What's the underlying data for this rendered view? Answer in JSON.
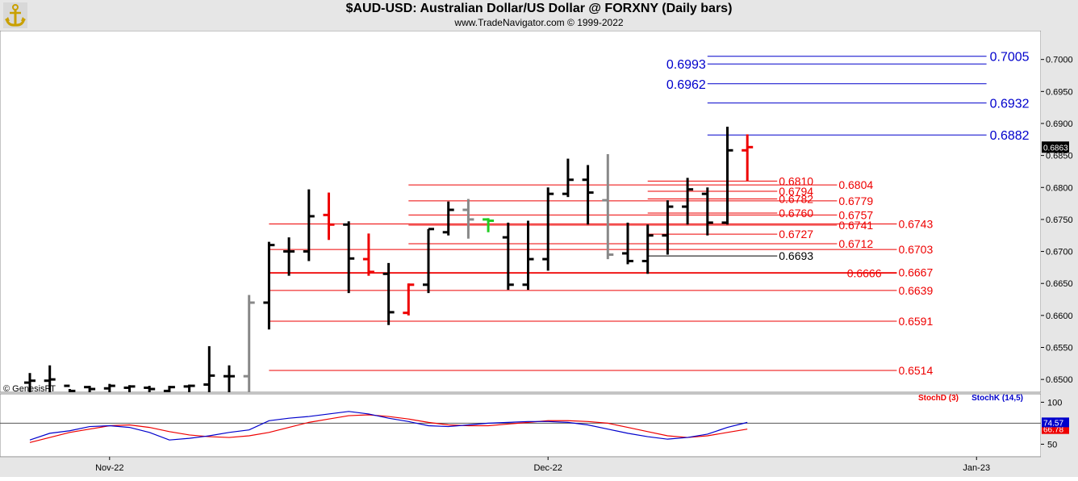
{
  "header": {
    "title": "$AUD-USD:  Australian Dollar/US Dollar @ FORXNY  (Daily bars)",
    "subtitle": "www.TradeNavigator.com © 1999-2022"
  },
  "copyright": "© GenesisFT",
  "colors": {
    "blue": "#0000cc",
    "red": "#e00000",
    "up": "#000000",
    "down": "#ee0000",
    "gray": "#888888",
    "green": "#22cc22"
  },
  "chart_data": [
    {
      "type": "ohlc",
      "ylim": [
        0.648,
        0.7045
      ],
      "yticks": [
        0.65,
        0.655,
        0.66,
        0.665,
        0.67,
        0.675,
        0.68,
        0.685,
        0.69,
        0.695,
        0.7
      ],
      "ytick_labels": [
        "0.6500",
        "0.6550",
        "0.6600",
        "0.6650",
        "0.6700",
        "0.6750",
        "0.6800",
        "0.6850",
        "0.6900",
        "0.6950",
        "0.7000"
      ],
      "last_price_label": "0.6863",
      "xtick_labels": [
        {
          "label": "Nov-22",
          "bar": 4
        },
        {
          "label": "Dec-22",
          "bar": 26
        },
        {
          "label": "Jan-23",
          "bar": 47.5
        }
      ],
      "bars": [
        {
          "o": 0.6495,
          "h": 0.651,
          "l": 0.648,
          "c": 0.6498,
          "col": "black"
        },
        {
          "o": 0.6498,
          "h": 0.6522,
          "l": 0.648,
          "c": 0.65,
          "col": "black"
        },
        {
          "o": 0.649,
          "h": 0.6485,
          "l": 0.648,
          "c": 0.6482,
          "col": "black"
        },
        {
          "o": 0.6488,
          "h": 0.649,
          "l": 0.648,
          "c": 0.6485,
          "col": "black"
        },
        {
          "o": 0.6486,
          "h": 0.6493,
          "l": 0.648,
          "c": 0.649,
          "col": "black"
        },
        {
          "o": 0.6487,
          "h": 0.6491,
          "l": 0.648,
          "c": 0.6489,
          "col": "black"
        },
        {
          "o": 0.6487,
          "h": 0.649,
          "l": 0.648,
          "c": 0.6485,
          "col": "black"
        },
        {
          "o": 0.6482,
          "h": 0.649,
          "l": 0.648,
          "c": 0.6488,
          "col": "black"
        },
        {
          "o": 0.6489,
          "h": 0.6492,
          "l": 0.648,
          "c": 0.649,
          "col": "black"
        },
        {
          "o": 0.6492,
          "h": 0.6552,
          "l": 0.648,
          "c": 0.6506,
          "col": "black"
        },
        {
          "o": 0.6505,
          "h": 0.6522,
          "l": 0.648,
          "c": 0.6505,
          "col": "black"
        },
        {
          "o": 0.6505,
          "h": 0.6632,
          "l": 0.648,
          "c": 0.662,
          "col": "gray"
        },
        {
          "o": 0.662,
          "h": 0.6715,
          "l": 0.6578,
          "c": 0.671,
          "col": "black"
        },
        {
          "o": 0.67,
          "h": 0.6722,
          "l": 0.6662,
          "c": 0.67,
          "col": "black"
        },
        {
          "o": 0.67,
          "h": 0.6797,
          "l": 0.6685,
          "c": 0.6755,
          "col": "black"
        },
        {
          "o": 0.6757,
          "h": 0.6792,
          "l": 0.6718,
          "c": 0.6742,
          "col": "red"
        },
        {
          "o": 0.6742,
          "h": 0.6747,
          "l": 0.6635,
          "c": 0.6689,
          "col": "black"
        },
        {
          "o": 0.6688,
          "h": 0.6728,
          "l": 0.6662,
          "c": 0.6668,
          "col": "red"
        },
        {
          "o": 0.6665,
          "h": 0.6682,
          "l": 0.6585,
          "c": 0.6605,
          "col": "black"
        },
        {
          "o": 0.6604,
          "h": 0.665,
          "l": 0.66,
          "c": 0.6648,
          "col": "red"
        },
        {
          "o": 0.6648,
          "h": 0.6735,
          "l": 0.6635,
          "c": 0.6735,
          "col": "black"
        },
        {
          "o": 0.673,
          "h": 0.6778,
          "l": 0.6725,
          "c": 0.6765,
          "col": "black"
        },
        {
          "o": 0.6765,
          "h": 0.6782,
          "l": 0.672,
          "c": 0.675,
          "col": "gray"
        },
        {
          "o": 0.675,
          "h": 0.6752,
          "l": 0.673,
          "c": 0.6748,
          "col": "green"
        },
        {
          "o": 0.6722,
          "h": 0.6745,
          "l": 0.664,
          "c": 0.6648,
          "col": "black"
        },
        {
          "o": 0.6648,
          "h": 0.6748,
          "l": 0.664,
          "c": 0.6688,
          "col": "black"
        },
        {
          "o": 0.6688,
          "h": 0.68,
          "l": 0.667,
          "c": 0.679,
          "col": "black"
        },
        {
          "o": 0.679,
          "h": 0.6845,
          "l": 0.6785,
          "c": 0.6812,
          "col": "black"
        },
        {
          "o": 0.6812,
          "h": 0.6835,
          "l": 0.6742,
          "c": 0.6792,
          "col": "black"
        },
        {
          "o": 0.678,
          "h": 0.6852,
          "l": 0.6688,
          "c": 0.6695,
          "col": "gray"
        },
        {
          "o": 0.6697,
          "h": 0.6745,
          "l": 0.668,
          "c": 0.6685,
          "col": "black"
        },
        {
          "o": 0.6685,
          "h": 0.6742,
          "l": 0.6665,
          "c": 0.6725,
          "col": "black"
        },
        {
          "o": 0.6725,
          "h": 0.678,
          "l": 0.6695,
          "c": 0.677,
          "col": "black"
        },
        {
          "o": 0.677,
          "h": 0.6815,
          "l": 0.6742,
          "c": 0.6797,
          "col": "black"
        },
        {
          "o": 0.679,
          "h": 0.68,
          "l": 0.6725,
          "c": 0.6745,
          "col": "black"
        },
        {
          "o": 0.6745,
          "h": 0.6895,
          "l": 0.6742,
          "c": 0.6858,
          "col": "black"
        },
        {
          "o": 0.6858,
          "h": 0.6883,
          "l": 0.681,
          "c": 0.6863,
          "col": "red"
        }
      ],
      "levels": [
        {
          "value": 0.7005,
          "label": "0.7005",
          "color": "blue",
          "from": 34,
          "to": 48,
          "label_at": "right-outside"
        },
        {
          "value": 0.6993,
          "label": "0.6993",
          "color": "blue",
          "from": 34,
          "to": 48,
          "label_at": "left"
        },
        {
          "value": 0.6962,
          "label": "0.6962",
          "color": "blue",
          "from": 34,
          "to": 48,
          "label_at": "left"
        },
        {
          "value": 0.6932,
          "label": "0.6932",
          "color": "blue",
          "from": 34,
          "to": 48,
          "label_at": "right-outside"
        },
        {
          "value": 0.6882,
          "label": "0.6882",
          "color": "blue",
          "from": 34,
          "to": 48,
          "label_at": "right-outside"
        },
        {
          "value": 0.681,
          "label": "0.6810",
          "color": "red",
          "from": 31,
          "to": 37.5,
          "label_at": "right"
        },
        {
          "value": 0.6804,
          "label": "0.6804",
          "color": "red",
          "from": 19,
          "to": 40.5,
          "label_at": "right"
        },
        {
          "value": 0.6794,
          "label": "0.6794",
          "color": "red",
          "from": 31,
          "to": 37.5,
          "label_at": "right"
        },
        {
          "value": 0.6782,
          "label": "0.6782",
          "color": "red",
          "from": 31,
          "to": 37.5,
          "label_at": "right"
        },
        {
          "value": 0.6779,
          "label": "0.6779",
          "color": "red",
          "from": 19,
          "to": 40.5,
          "label_at": "right"
        },
        {
          "value": 0.676,
          "label": "0.6760",
          "color": "red",
          "from": 31,
          "to": 37.5,
          "label_at": "right"
        },
        {
          "value": 0.6757,
          "label": "0.6757",
          "color": "red",
          "from": 19,
          "to": 40.5,
          "label_at": "right"
        },
        {
          "value": 0.6741,
          "label": "0.6741",
          "color": "red",
          "from": 19,
          "to": 40.5,
          "label_at": "right"
        },
        {
          "value": 0.6743,
          "label": "0.6743",
          "color": "red",
          "from": 12,
          "to": 43.5,
          "label_at": "right"
        },
        {
          "value": 0.6727,
          "label": "0.6727",
          "color": "red",
          "from": 31,
          "to": 37.5,
          "label_at": "right"
        },
        {
          "value": 0.6712,
          "label": "0.6712",
          "color": "red",
          "from": 19,
          "to": 40.5,
          "label_at": "right"
        },
        {
          "value": 0.6703,
          "label": "0.6703",
          "color": "red",
          "from": 12,
          "to": 43.5,
          "label_at": "right"
        },
        {
          "value": 0.6693,
          "label": "0.6693",
          "color": "black",
          "from": 31,
          "to": 37.5,
          "label_at": "right"
        },
        {
          "value": 0.6666,
          "label": "0.6666",
          "color": "red",
          "from": 12,
          "to": 43.5,
          "label_at": "mid"
        },
        {
          "value": 0.6667,
          "label": "0.6667",
          "color": "red",
          "from": 12,
          "to": 43.5,
          "label_at": "right"
        },
        {
          "value": 0.6639,
          "label": "0.6639",
          "color": "red",
          "from": 12,
          "to": 43.5,
          "label_at": "right"
        },
        {
          "value": 0.6591,
          "label": "0.6591",
          "color": "red",
          "from": 12,
          "to": 43.5,
          "label_at": "right"
        },
        {
          "value": 0.6514,
          "label": "0.6514",
          "color": "red",
          "from": 12,
          "to": 43.5,
          "label_at": "right"
        }
      ]
    },
    {
      "type": "line",
      "ylim": [
        35,
        110
      ],
      "yticks": [
        50,
        100
      ],
      "ytick_labels": [
        "50",
        "100"
      ],
      "reference_line": 75,
      "series": [
        {
          "name": "StochD (3)",
          "color": "red",
          "last_label": "66.78",
          "values": [
            52,
            58,
            64,
            68,
            72,
            73,
            70,
            65,
            61,
            59,
            58,
            60,
            64,
            70,
            76,
            80,
            84,
            85,
            83,
            80,
            76,
            73,
            72,
            72,
            74,
            76,
            78,
            78,
            77,
            75,
            70,
            65,
            60,
            58,
            60,
            64,
            68
          ]
        },
        {
          "name": "StochK (14,5)",
          "color": "blue",
          "last_label": "74.57",
          "values": [
            55,
            63,
            66,
            71,
            72,
            70,
            64,
            55,
            57,
            60,
            64,
            67,
            78,
            81,
            83,
            86,
            89,
            86,
            81,
            77,
            72,
            71,
            73,
            75,
            76,
            77,
            77,
            76,
            73,
            68,
            63,
            59,
            56,
            58,
            62,
            70,
            76
          ]
        }
      ]
    }
  ]
}
